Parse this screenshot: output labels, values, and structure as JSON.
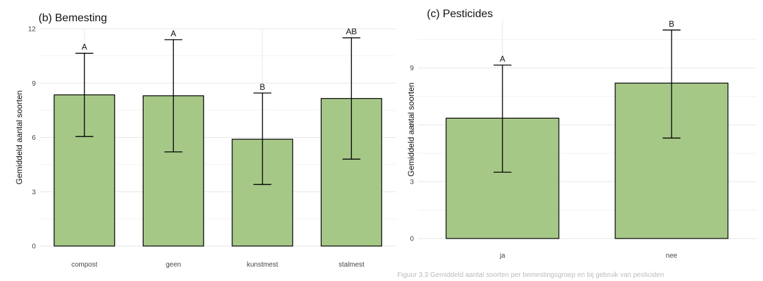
{
  "bar_color": "#a6c887",
  "caption_fragment": "Figuur 3.3 Gemiddeld aantal soorten per bemestingsgroep en bij gebruik van pesticiden",
  "chart_data": [
    {
      "type": "bar",
      "title": "(b) Bemesting",
      "xlabel": "",
      "ylabel": "Gemiddeld aantal soorten",
      "categories": [
        "compost",
        "geen",
        "kunstmest",
        "stalmest"
      ],
      "values": [
        8.35,
        8.3,
        5.9,
        8.15
      ],
      "error_low": [
        6.05,
        5.2,
        3.4,
        4.8
      ],
      "error_high": [
        10.65,
        11.4,
        8.45,
        11.5
      ],
      "significance": [
        "A",
        "A",
        "B",
        "AB"
      ],
      "ylim": [
        0,
        12
      ],
      "yticks": [
        "0",
        "3",
        "6",
        "9",
        "12"
      ],
      "grid": true
    },
    {
      "type": "bar",
      "title": "(c) Pesticides",
      "xlabel": "",
      "ylabel": "Gemiddeld aantal soorten",
      "categories": [
        "ja",
        "nee"
      ],
      "values": [
        6.35,
        8.2
      ],
      "error_low": [
        3.5,
        5.3
      ],
      "error_high": [
        9.15,
        11.0
      ],
      "significance": [
        "A",
        "B"
      ],
      "ylim": [
        0,
        11.5
      ],
      "yticks": [
        "0",
        "3",
        "6",
        "9"
      ],
      "grid": true
    }
  ]
}
